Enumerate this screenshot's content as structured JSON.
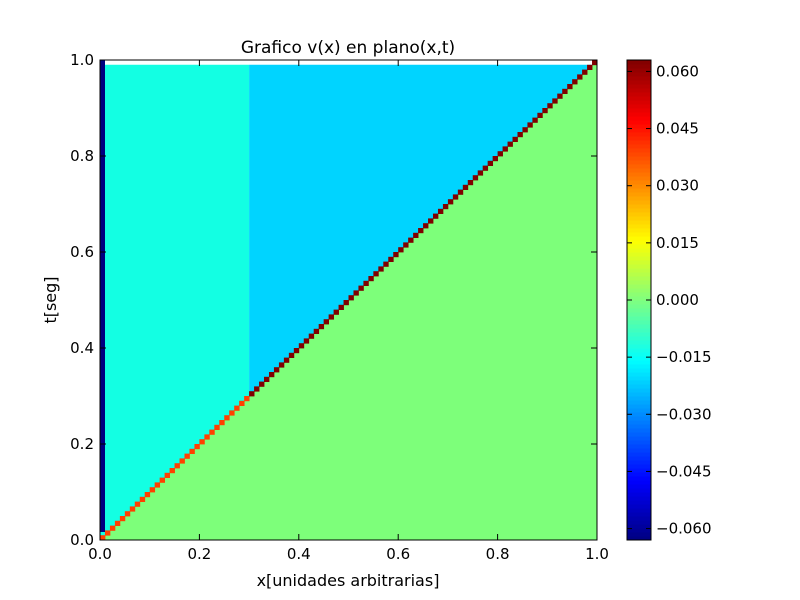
{
  "chart_data": {
    "type": "heatmap",
    "title": "Grafico v(x) en plano(x,t)",
    "xlabel": "x[unidades arbitrarias]",
    "ylabel": "t[seg]",
    "xlim": [
      0.0,
      1.0
    ],
    "ylim": [
      0.0,
      1.0
    ],
    "x_ticks": [
      "0.0",
      "0.2",
      "0.4",
      "0.6",
      "0.8",
      "1.0"
    ],
    "y_ticks": [
      "0.0",
      "0.2",
      "0.4",
      "0.6",
      "0.8",
      "1.0"
    ],
    "colormap": "jet",
    "colorbar": {
      "vmin": -0.063,
      "vmax": 0.063,
      "ticks": [
        "0.060",
        "0.045",
        "0.030",
        "0.015",
        "0.000",
        "−0.015",
        "−0.030",
        "−0.045",
        "−0.060"
      ],
      "tick_values": [
        0.06,
        0.045,
        0.03,
        0.015,
        0.0,
        -0.015,
        -0.03,
        -0.045,
        -0.06
      ]
    },
    "grid": false,
    "regions": {
      "left_boundary_value": -0.063,
      "upper_left_value": -0.017,
      "upper_right_value": -0.028,
      "upper_split_x": 0.3,
      "below_diagonal_value": 0.0,
      "diagonal_lower_value": 0.045,
      "diagonal_upper_value": 0.063,
      "diagonal": "t = x"
    },
    "colors": {
      "left_boundary": "#00007f",
      "upper_left": "#13ffe3",
      "upper_right": "#00d4ff",
      "below_diagonal": "#7dff7a",
      "diagonal_lower": "#ff3f00",
      "diagonal_upper": "#7f0000"
    }
  }
}
